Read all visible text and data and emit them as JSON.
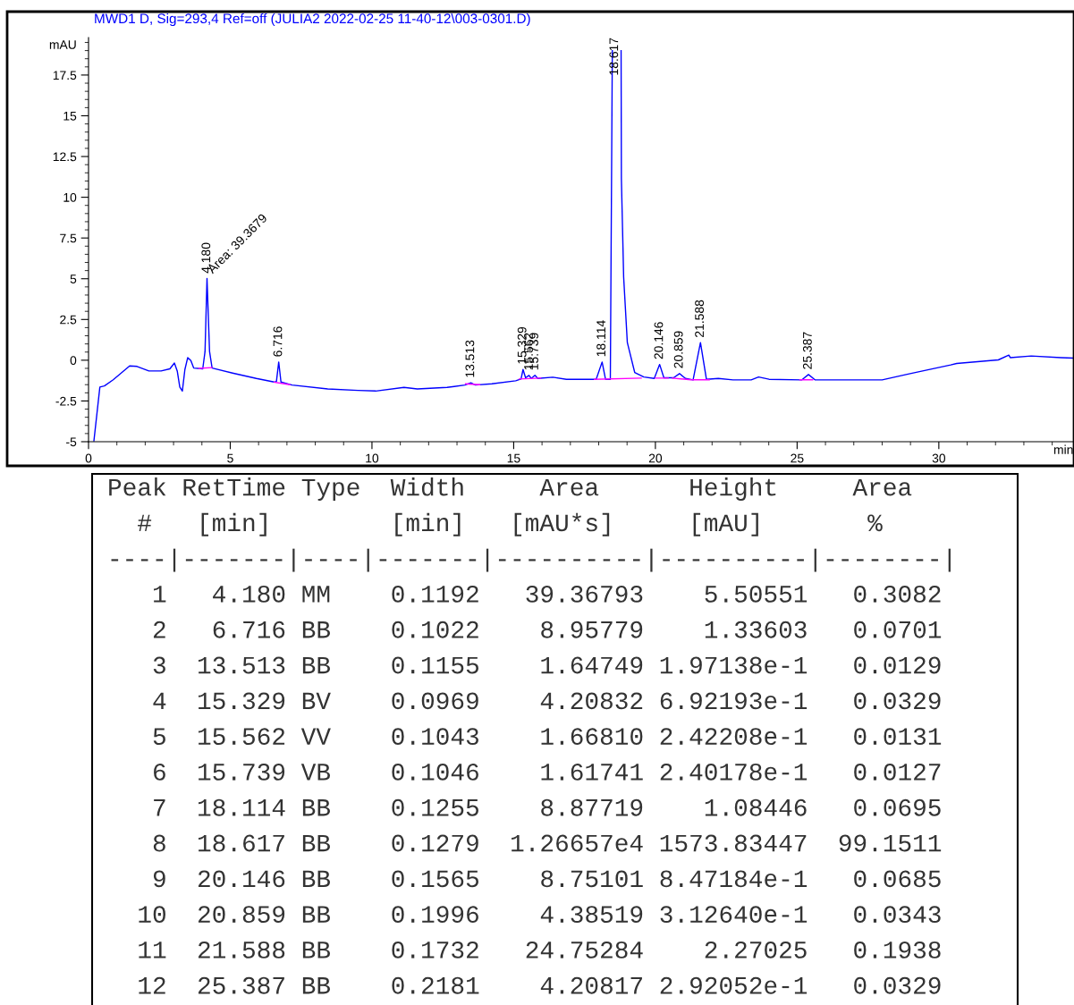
{
  "chart_data": {
    "type": "line",
    "title": "MWD1 D, Sig=293,4 Ref=off (JULIA2 2022-02-25 11-40-12\\003-0301.D)",
    "xlabel": "min",
    "ylabel": "mAU",
    "xlim": [
      0,
      34.75
    ],
    "ylim": [
      -5,
      19.8
    ],
    "xticks": [
      0,
      5,
      10,
      15,
      20,
      25,
      30,
      {
        "value": 1,
        "label": null
      },
      {
        "value": 2,
        "label": null
      },
      {
        "value": 3,
        "label": null
      },
      {
        "value": 4,
        "label": null
      },
      {
        "value": 6,
        "label": null
      },
      {
        "value": 7,
        "label": null
      },
      {
        "value": 8,
        "label": null
      },
      {
        "value": 9,
        "label": null
      },
      {
        "value": 11,
        "label": null
      },
      {
        "value": 12,
        "label": null
      },
      {
        "value": 13,
        "label": null
      },
      {
        "value": 14,
        "label": null
      },
      {
        "value": 16,
        "label": null
      },
      {
        "value": 17,
        "label": null
      },
      {
        "value": 18,
        "label": null
      },
      {
        "value": 19,
        "label": null
      },
      {
        "value": 21,
        "label": null
      },
      {
        "value": 22,
        "label": null
      },
      {
        "value": 23,
        "label": null
      },
      {
        "value": 24,
        "label": null
      },
      {
        "value": 26,
        "label": null
      },
      {
        "value": 27,
        "label": null
      },
      {
        "value": 28,
        "label": null
      },
      {
        "value": 29,
        "label": null
      },
      {
        "value": 31,
        "label": null
      },
      {
        "value": 32,
        "label": null
      },
      {
        "value": 33,
        "label": null
      },
      {
        "value": 34,
        "label": null
      }
    ],
    "yticks": [
      -5,
      -2.5,
      0,
      2.5,
      5,
      7.5,
      10,
      12.5,
      15,
      17.5,
      {
        "value": -4.5,
        "label": null
      },
      {
        "value": -4,
        "label": null
      },
      {
        "value": -3.5,
        "label": null
      },
      {
        "value": -3,
        "label": null
      },
      {
        "value": -2,
        "label": null
      },
      {
        "value": -1.5,
        "label": null
      },
      {
        "value": -1,
        "label": null
      },
      {
        "value": -0.5,
        "label": null
      },
      {
        "value": 0.5,
        "label": null
      },
      {
        "value": 1,
        "label": null
      },
      {
        "value": 1.5,
        "label": null
      },
      {
        "value": 2,
        "label": null
      },
      {
        "value": 3,
        "label": null
      },
      {
        "value": 3.5,
        "label": null
      },
      {
        "value": 4,
        "label": null
      },
      {
        "value": 4.5,
        "label": null
      },
      {
        "value": 5.5,
        "label": null
      },
      {
        "value": 6,
        "label": null
      },
      {
        "value": 6.5,
        "label": null
      },
      {
        "value": 7,
        "label": null
      },
      {
        "value": 8,
        "label": null
      },
      {
        "value": 8.5,
        "label": null
      },
      {
        "value": 9,
        "label": null
      },
      {
        "value": 9.5,
        "label": null
      },
      {
        "value": 10.5,
        "label": null
      },
      {
        "value": 11,
        "label": null
      },
      {
        "value": 11.5,
        "label": null
      },
      {
        "value": 12,
        "label": null
      },
      {
        "value": 13,
        "label": null
      },
      {
        "value": 13.5,
        "label": null
      },
      {
        "value": 14,
        "label": null
      },
      {
        "value": 14.5,
        "label": null
      },
      {
        "value": 15.5,
        "label": null
      },
      {
        "value": 16,
        "label": null
      },
      {
        "value": 16.5,
        "label": null
      },
      {
        "value": 17,
        "label": null
      },
      {
        "value": 18,
        "label": null
      },
      {
        "value": 18.5,
        "label": null
      },
      {
        "value": 19,
        "label": null
      },
      {
        "value": 19.5,
        "label": null
      }
    ],
    "series": [
      {
        "color": "#0000ff",
        "x": [
          0.19,
          0.4,
          0.56,
          0.87,
          1.45,
          1.71,
          2.13,
          2.56,
          2.87,
          3.03,
          3.13,
          3.22,
          3.31,
          3.4,
          3.5,
          3.61,
          3.71,
          4.03,
          4.11,
          4.18,
          4.27,
          4.36,
          5.08,
          5.92,
          6.55,
          6.63,
          6.71,
          6.79,
          7.18,
          8.44,
          9.5,
          10.13,
          11.13,
          11.6,
          12.65,
          13.28,
          13.49,
          13.65,
          14.23,
          15.07,
          15.26,
          15.33,
          15.42,
          15.54,
          15.62,
          15.75,
          15.85,
          16.38,
          16.86,
          17.91,
          18.12,
          18.24,
          18.41,
          18.48,
          18.62,
          18.79,
          18.8,
          18.88,
          19.01,
          19.27,
          19.59,
          19.96,
          20.15,
          20.3,
          20.64,
          20.85,
          21.06,
          21.33,
          21.59,
          21.8,
          22.22,
          22.74,
          23.38,
          23.64,
          24.01,
          25.16,
          25.4,
          25.64,
          28.0,
          28.95,
          30.42,
          30.63,
          32.1,
          32.47,
          32.52,
          33.26,
          34.31,
          34.73
        ],
        "values": [
          -4.95,
          -1.65,
          -1.58,
          -1.2,
          -0.35,
          -0.38,
          -0.66,
          -0.66,
          -0.53,
          -0.17,
          -0.66,
          -1.65,
          -1.89,
          -0.57,
          0.16,
          -0.02,
          -0.48,
          -0.53,
          0.53,
          5.02,
          0.53,
          -0.48,
          -0.79,
          -1.12,
          -1.34,
          -1.3,
          -0.11,
          -1.34,
          -1.52,
          -1.76,
          -1.85,
          -1.89,
          -1.67,
          -1.76,
          -1.67,
          -1.52,
          -1.39,
          -1.52,
          -1.45,
          -1.26,
          -1.15,
          -0.57,
          -1.08,
          -0.93,
          -1.12,
          -0.93,
          -1.12,
          -1.04,
          -1.17,
          -1.17,
          -0.11,
          -1.17,
          -1.17,
          19.0,
          null,
          19.0,
          11.15,
          5.1,
          1.08,
          -0.75,
          -1.03,
          -1.12,
          -0.26,
          -1.08,
          -1.08,
          -0.82,
          -1.12,
          -1.21,
          1.08,
          -1.17,
          -1.12,
          -1.21,
          -1.21,
          -1.03,
          -1.17,
          -1.21,
          -0.88,
          -1.21,
          -1.21,
          -0.84,
          -0.29,
          -0.2,
          0.02,
          0.31,
          0.16,
          0.26,
          0.16,
          0.13
        ]
      },
      {
        "color": "#ff00ff",
        "x": [
          3.9,
          4.35,
          4.4,
          6.55,
          7.1,
          7.2,
          13.3,
          13.8,
          13.9,
          15.2,
          15.95,
          16.0,
          17.85,
          19.5,
          19.6,
          20.0,
          20.45,
          20.5,
          20.6,
          21.25,
          21.28,
          21.3,
          21.9,
          22.0,
          25.1,
          25.55
        ],
        "values": [
          -0.5,
          -0.45,
          null,
          -1.35,
          -1.5,
          null,
          -1.45,
          -1.5,
          null,
          -1.15,
          -1.1,
          null,
          -1.17,
          -1.1,
          null,
          -1.1,
          -1.1,
          null,
          -1.1,
          -1.2,
          null,
          -1.2,
          -1.2,
          null,
          -1.2,
          -1.2
        ]
      }
    ],
    "annotations": [
      {
        "text": "4.180",
        "x": 4.18,
        "y": 5.02
      },
      {
        "text": "Area: 39.3679",
        "x": 4.18,
        "y": 5.02
      },
      {
        "text": "6.716",
        "x": 6.71,
        "y": -0.11
      },
      {
        "text": "13.513",
        "x": 13.49,
        "y": -1.39
      },
      {
        "text": "15.329",
        "x": 15.33,
        "y": -0.57
      },
      {
        "text": "15.562",
        "x": 15.56,
        "y": -0.93
      },
      {
        "text": "15.739",
        "x": 15.75,
        "y": -0.93
      },
      {
        "text": "18.114",
        "x": 18.12,
        "y": -0.11
      },
      {
        "text": "18.617",
        "x": 18.48,
        "y": 19.0
      },
      {
        "text": "20.146",
        "x": 20.15,
        "y": -0.26
      },
      {
        "text": "20.859",
        "x": 20.85,
        "y": -0.82
      },
      {
        "text": "21.588",
        "x": 21.59,
        "y": 1.08
      },
      {
        "text": "25.387",
        "x": 25.4,
        "y": -0.88
      },
      "Peak RetTime Type  Width     Area      Height     Area",
      "  #   [min]        [min]   [mAU*s]     [mAU]       %",
      "----|-------|----|-------|----------|----------|--------|",
      "   1   4.180 MM    0.1192   39.36793    5.50551   0.3082",
      "   2   6.716 BB    0.1022    8.95779    1.33603   0.0701",
      "   3  13.513 BB    0.1155    1.64749 1.97138e-1   0.0129",
      "   4  15.329 BV    0.0969    4.20832 6.92193e-1   0.0329",
      "   5  15.562 VV    0.1043    1.66810 2.42208e-1   0.0131",
      "   6  15.739 VB    0.1046    1.61741 2.40178e-1   0.0127",
      "   7  18.114 BB    0.1255    8.87719    1.08446   0.0695",
      "   8  18.617 BB    0.1279  1.26657e4 1573.83447  99.1511",
      "   9  20.146 BB    0.1565    8.75101 8.47184e-1   0.0685",
      "  10  20.859 BB    0.1996    4.38519 3.12640e-1   0.0343",
      "  11  21.588 BB    0.1732   24.75284    2.27025   0.1938",
      "  12  25.387 BB    0.2181    4.20817 2.92052e-1   0.0329"
    ]
  }
}
